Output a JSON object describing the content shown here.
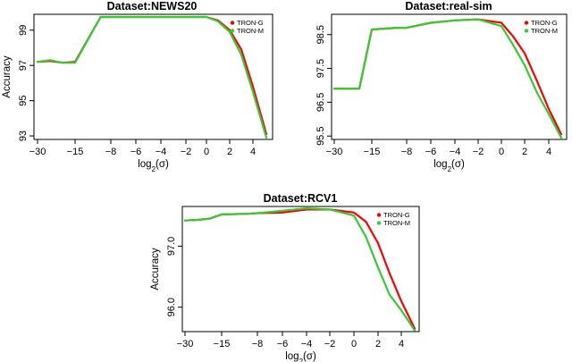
{
  "chart_data": [
    {
      "type": "line",
      "title": "Dataset:NEWS20",
      "xlabel": "log2(σ)",
      "ylabel": "Accuracy",
      "x_tick_labels": [
        "−30",
        "−15",
        "−8",
        "−6",
        "−4",
        "−2",
        "0",
        "2",
        "4"
      ],
      "y_tick_labels": [
        "93",
        "95",
        "97",
        "99"
      ],
      "ylim": [
        92.8,
        99.9
      ],
      "x": [
        -30,
        -25,
        -20,
        -15,
        -10,
        -8,
        -6,
        -4,
        -2,
        0,
        1,
        2,
        3,
        4,
        5
      ],
      "series": [
        {
          "name": "TRON-G",
          "color": "#ff0000",
          "values": [
            97.2,
            97.25,
            97.15,
            97.2,
            99.75,
            99.75,
            99.75,
            99.75,
            99.75,
            99.75,
            99.55,
            99.0,
            97.9,
            95.8,
            93.1
          ]
        },
        {
          "name": "TRON-M",
          "color": "#33cc33",
          "values": [
            97.2,
            97.3,
            97.15,
            97.15,
            99.75,
            99.75,
            99.75,
            99.75,
            99.75,
            99.75,
            99.5,
            98.9,
            97.6,
            95.5,
            92.9
          ]
        }
      ],
      "legend": "top-right"
    },
    {
      "type": "line",
      "title": "Dataset:real-sim",
      "xlabel": "log2(σ)",
      "ylabel": "",
      "x_tick_labels": [
        "−30",
        "−15",
        "−8",
        "−6",
        "−4",
        "−2",
        "0",
        "2",
        "4"
      ],
      "y_tick_labels": [
        "95.5",
        "96.5",
        "97.5",
        "98.5"
      ],
      "ylim": [
        95.4,
        99.1
      ],
      "x": [
        -30,
        -25,
        -20,
        -15,
        -10,
        -8,
        -6,
        -4,
        -2,
        0,
        1,
        2,
        3,
        4,
        5
      ],
      "series": [
        {
          "name": "TRON-G",
          "color": "#ff0000",
          "values": [
            96.9,
            96.9,
            96.9,
            98.65,
            98.7,
            98.7,
            98.85,
            98.92,
            98.95,
            98.85,
            98.45,
            97.95,
            97.15,
            96.3,
            95.55
          ]
        },
        {
          "name": "TRON-M",
          "color": "#33cc33",
          "values": [
            96.9,
            96.9,
            96.9,
            98.65,
            98.7,
            98.7,
            98.85,
            98.92,
            98.95,
            98.75,
            98.2,
            97.6,
            96.8,
            96.15,
            95.45
          ]
        }
      ],
      "legend": "top-right"
    },
    {
      "type": "line",
      "title": "Dataset:RCV1",
      "xlabel": "log2(σ)",
      "ylabel": "Accuracy",
      "x_tick_labels": [
        "−30",
        "−15",
        "−8",
        "−6",
        "−4",
        "−2",
        "0",
        "2",
        "4"
      ],
      "y_tick_labels": [
        "96.0",
        "97.0"
      ],
      "ylim": [
        95.6,
        97.65
      ],
      "x": [
        -30,
        -25,
        -20,
        -15,
        -10,
        -8,
        -6,
        -4,
        -2,
        0,
        1,
        2,
        3,
        4,
        5
      ],
      "series": [
        {
          "name": "TRON-G",
          "color": "#ff0000",
          "values": [
            97.42,
            97.43,
            97.45,
            97.52,
            97.53,
            97.54,
            97.55,
            97.6,
            97.6,
            97.55,
            97.4,
            97.05,
            96.55,
            96.1,
            95.65
          ]
        },
        {
          "name": "TRON-M",
          "color": "#33cc33",
          "values": [
            97.42,
            97.43,
            97.45,
            97.52,
            97.53,
            97.54,
            97.58,
            97.62,
            97.6,
            97.5,
            97.15,
            96.65,
            96.2,
            95.95,
            95.62
          ]
        }
      ],
      "legend": "top-right"
    }
  ]
}
